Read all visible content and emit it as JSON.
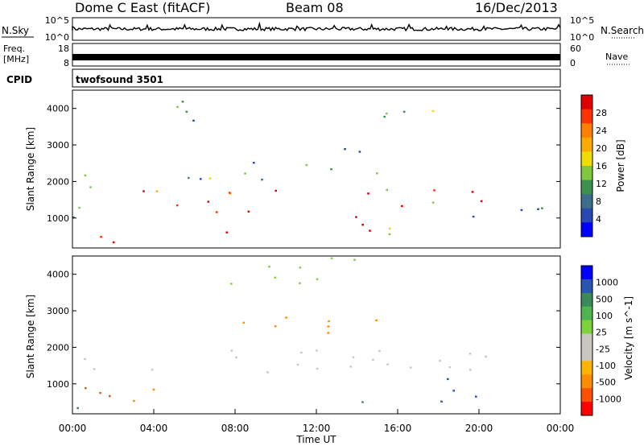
{
  "header": {
    "station": "Dome C East (fitACF)",
    "beam": "Beam 08",
    "date": "16/Dec/2013"
  },
  "param_panel": {
    "nsky_label": "N.Sky",
    "nsearch_label": "N.Search",
    "freq_label": "Freq.",
    "freq_unit": "[MHz]",
    "nave_label": "Nave",
    "cpid_label": "CPID",
    "cpid_value": "twofsound 3501",
    "noise_left_ticks": [
      "10^5",
      "10^0"
    ],
    "noise_right_ticks": [
      "10^5",
      "10^0"
    ],
    "freq_left_ticks": [
      "18",
      "8"
    ],
    "freq_right_ticks": [
      "60",
      "0"
    ]
  },
  "chart_data": [
    {
      "type": "heatmap",
      "title": "",
      "xlabel": "",
      "ylabel": "Slant Range [km]",
      "xlim": [
        "00:00",
        "00:00"
      ],
      "ylim": [
        180,
        4500
      ],
      "ytick_values": [
        1000,
        2000,
        3000,
        4000
      ],
      "ytick_labels": [
        "1000",
        "2000",
        "3000",
        "4000"
      ],
      "colorbar": {
        "label": "Power [dB]",
        "tick_labels": [
          "28",
          "24",
          "20",
          "16",
          "12",
          "8",
          "4"
        ],
        "colors": [
          "#e00000",
          "#ff3300",
          "#ff7f00",
          "#ffaa00",
          "#f0dc00",
          "#80c83c",
          "#3c9050",
          "#3c6e8c",
          "#2848b4",
          "#0000ff"
        ]
      },
      "regions": [
        {
          "t0": 0.0,
          "t1": 5.0,
          "r0": 260,
          "r1": 560,
          "value": 26
        },
        {
          "t0": 0.0,
          "t1": 2.5,
          "r0": 800,
          "r1": 2300,
          "value": 8
        },
        {
          "t0": 3.0,
          "t1": 24.0,
          "r0": 1300,
          "r1": 1900,
          "value": 22
        },
        {
          "t0": 6.0,
          "t1": 16.0,
          "r0": 500,
          "r1": 1200,
          "value": 24
        },
        {
          "t0": 5.0,
          "t1": 9.0,
          "r0": 3600,
          "r1": 4500,
          "value": 12
        },
        {
          "t0": 9.0,
          "t1": 18.0,
          "r0": 3600,
          "r1": 4000,
          "value": 10
        },
        {
          "t0": 5.0,
          "t1": 15.0,
          "r0": 2000,
          "r1": 3000,
          "value": 12
        },
        {
          "t0": 16.0,
          "t1": 24.0,
          "r0": 900,
          "r1": 1300,
          "value": 8
        }
      ]
    },
    {
      "type": "heatmap",
      "title": "",
      "xlabel": "Time UT",
      "ylabel": "Slant Range [km]",
      "xlim": [
        "00:00",
        "00:00"
      ],
      "ylim": [
        180,
        4500
      ],
      "xtick_labels": [
        "00:00",
        "04:00",
        "08:00",
        "12:00",
        "16:00",
        "20:00",
        "00:00"
      ],
      "ytick_values": [
        1000,
        2000,
        3000,
        4000
      ],
      "ytick_labels": [
        "1000",
        "2000",
        "3000",
        "4000"
      ],
      "colorbar": {
        "label": "Velocity [m s^-1]",
        "tick_labels": [
          "1000",
          "500",
          "100",
          "25",
          "-25",
          "-100",
          "-500",
          "-1000"
        ],
        "colors": [
          "#0000ff",
          "#2a55b0",
          "#3c8a5a",
          "#50b450",
          "#80d23c",
          "#c8c8c0",
          "#c8c8c0",
          "#ffb400",
          "#ff8c00",
          "#ff5000",
          "#ff0000"
        ]
      },
      "regions": [
        {
          "t0": 0.0,
          "t1": 24.0,
          "r0": 1200,
          "r1": 2000,
          "value": 0
        },
        {
          "t0": 0.0,
          "t1": 4.0,
          "r0": 200,
          "r1": 450,
          "value": 250
        },
        {
          "t0": 0.0,
          "t1": 6.5,
          "r0": 450,
          "r1": 1100,
          "value": -300
        },
        {
          "t0": 14.0,
          "t1": 20.0,
          "r0": 400,
          "r1": 1200,
          "value": 300
        },
        {
          "t0": 5.0,
          "t1": 14.0,
          "r0": 3700,
          "r1": 4500,
          "value": 10
        },
        {
          "t0": 8.0,
          "t1": 16.0,
          "r0": 2200,
          "r1": 3000,
          "value": -200
        }
      ]
    }
  ]
}
